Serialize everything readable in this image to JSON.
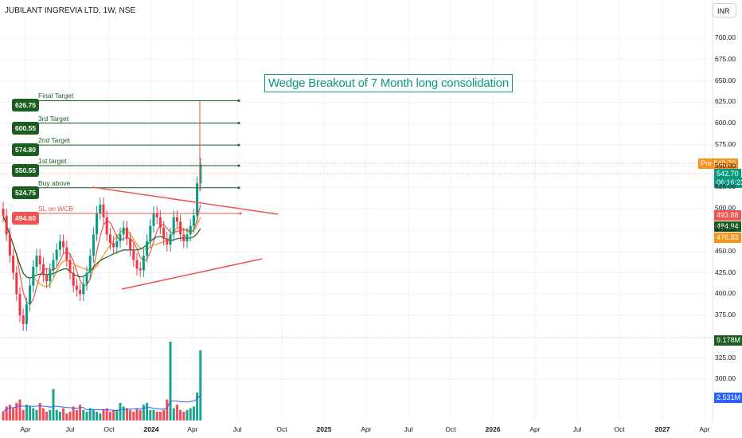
{
  "header": {
    "symbol_title": "JUBILANT INGREVIA LTD, 1W, NSE",
    "currency": "INR"
  },
  "annotation": "Wedge Breakout of 7 Month long consolidation",
  "levels": [
    {
      "value_label": "626.75",
      "name": "Final Target",
      "price": 626.75,
      "color": "#1b5e20"
    },
    {
      "value_label": "600.55",
      "name": "3rd Target",
      "price": 600.55,
      "color": "#1b5e20"
    },
    {
      "value_label": "574.80",
      "name": "2nd Target",
      "price": 574.8,
      "color": "#1b5e20"
    },
    {
      "value_label": "550.55",
      "name": "1st target",
      "price": 550.55,
      "color": "#1b5e20"
    },
    {
      "value_label": "524.75",
      "name": "Buy above",
      "price": 524.75,
      "color": "#1b5e20"
    },
    {
      "value_label": "494.60",
      "name": "SL on WCB",
      "price": 494.6,
      "color": "#ef5350"
    }
  ],
  "price_tags": [
    {
      "text": "Pre  542.70",
      "price": 547.0,
      "color": "#f7931a"
    },
    {
      "text": "542.70",
      "price": 542.7,
      "color": "#089981"
    },
    {
      "text": "06:16:23",
      "price": 532.0,
      "color": "#089981"
    },
    {
      "text": "493.88",
      "price": 493.88,
      "color": "#ef5350"
    },
    {
      "text": "484.94",
      "price": 484.94,
      "color": "#1b5e20"
    },
    {
      "text": "476.83",
      "price": 476.83,
      "color": "#f7931a"
    }
  ],
  "volume_tags": [
    {
      "text": "9.178M",
      "color": "#1b5e20"
    },
    {
      "text": "2.531M",
      "color": "#2962ff"
    }
  ],
  "chart_data": {
    "type": "candlestick",
    "title": "JUBILANT INGREVIA LTD, 1W, NSE",
    "y_ticks": [
      700,
      675,
      650,
      625,
      600,
      575,
      550,
      525,
      500,
      475,
      450,
      425,
      400,
      375,
      325,
      300
    ],
    "y_ticks_labels": [
      "700.00",
      "675.00",
      "650.00",
      "625.00",
      "600.00",
      "575.00",
      "550.00",
      "525.00",
      "500.00",
      "475.00",
      "450.00",
      "425.00",
      "400.00",
      "375.00",
      "325.00",
      "300.00"
    ],
    "x_ticks": [
      "Apr",
      "Jul",
      "Oct",
      "2024",
      "Apr",
      "Jul",
      "Oct",
      "2025",
      "Apr",
      "Jul",
      "Oct",
      "2026",
      "Apr",
      "Jul",
      "Oct",
      "2027",
      "Apr"
    ],
    "closes": [
      492,
      470,
      445,
      425,
      400,
      375,
      365,
      388,
      410,
      432,
      445,
      435,
      422,
      415,
      428,
      440,
      452,
      462,
      455,
      440,
      425,
      410,
      405,
      400,
      412,
      425,
      445,
      470,
      495,
      505,
      490,
      470,
      460,
      455,
      462,
      470,
      478,
      465,
      452,
      440,
      430,
      428,
      445,
      462,
      480,
      495,
      490,
      478,
      465,
      458,
      470,
      490,
      485,
      470,
      462,
      470,
      480,
      492,
      530,
      552
    ],
    "wedge_upper": {
      "from": [
        "Sep 2023",
        527
      ],
      "to": [
        "Oct 2024",
        490
      ]
    },
    "wedge_lower": {
      "from": [
        "Nov 2023",
        408
      ],
      "to": [
        "Oct 2024",
        445
      ]
    },
    "volume_last": "9.178M",
    "volume_ma": "2.531M",
    "grid": true
  }
}
